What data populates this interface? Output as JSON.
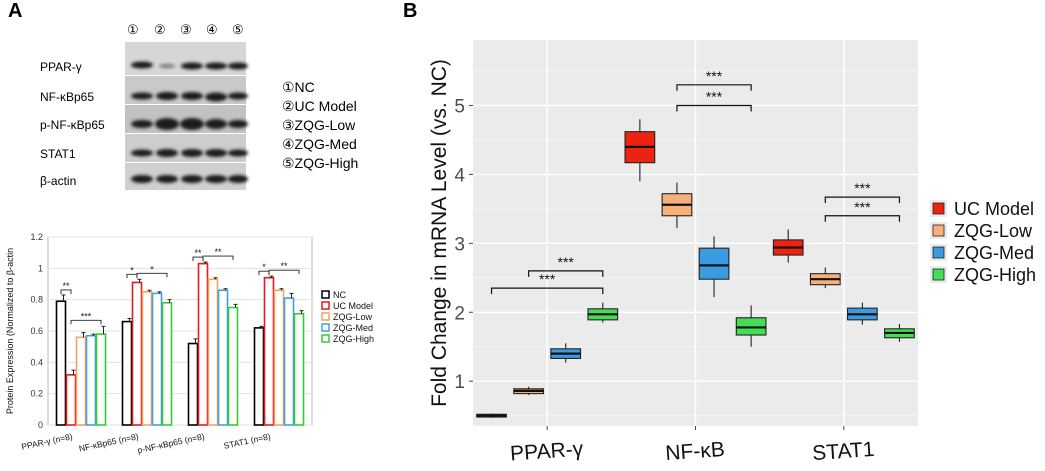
{
  "panel_a": {
    "letter": "A",
    "western_blot": {
      "lane_numbers": [
        "①",
        "②",
        "③",
        "④",
        "⑤"
      ],
      "rows": [
        "PPAR-γ",
        "NF-κBp65",
        "p-NF-κBp65",
        "STAT1",
        "β-actin"
      ],
      "legend": [
        "①NC",
        "②UC Model",
        "③ZQG-Low",
        "④ZQG-Med",
        "⑤ZQG-High"
      ]
    }
  },
  "panel_b": {
    "letter": "B"
  },
  "chart_data": [
    {
      "type": "bar",
      "panel": "A",
      "ylabel": "Protein Expression (Normalized to β-actin",
      "ylim": [
        0,
        1.2
      ],
      "yticks": [
        "0",
        "0.2",
        "0.4",
        "0.6",
        "0.8",
        "1",
        "1.2"
      ],
      "categories": [
        "PPAR-γ (n=8)",
        "NF-κBp65 (n=8)",
        "p-NF-κBp65 (n=8)",
        "STAT1 (n=8)"
      ],
      "series": [
        {
          "name": "NC",
          "color": "#000000",
          "values": [
            0.79,
            0.66,
            0.52,
            0.62
          ],
          "errors": [
            0.04,
            0.02,
            0.03,
            0.01
          ]
        },
        {
          "name": "UC Model",
          "color": "#e41a1c",
          "values": [
            0.32,
            0.91,
            1.03,
            0.94
          ],
          "errors": [
            0.03,
            0.02,
            0.01,
            0.01
          ]
        },
        {
          "name": "ZQG-Low",
          "color": "#f4a460",
          "values": [
            0.56,
            0.85,
            0.93,
            0.86
          ],
          "errors": [
            0.03,
            0.01,
            0.01,
            0.01
          ]
        },
        {
          "name": "ZQG-Med",
          "color": "#3fa0e0",
          "values": [
            0.57,
            0.84,
            0.86,
            0.81
          ],
          "errors": [
            0.01,
            0.01,
            0.01,
            0.03
          ]
        },
        {
          "name": "ZQG-High",
          "color": "#33cc33",
          "values": [
            0.58,
            0.78,
            0.75,
            0.71
          ],
          "errors": [
            0.05,
            0.02,
            0.02,
            0.02
          ]
        }
      ],
      "significance": [
        {
          "category": 0,
          "from": 0,
          "to": 1,
          "label": "**"
        },
        {
          "category": 0,
          "from": 1,
          "to": 4,
          "label": "***"
        },
        {
          "category": 1,
          "from": 0,
          "to": 1,
          "label": "*"
        },
        {
          "category": 1,
          "from": 1,
          "to": 4,
          "label": "*"
        },
        {
          "category": 2,
          "from": 0,
          "to": 1,
          "label": "**"
        },
        {
          "category": 2,
          "from": 1,
          "to": 4,
          "label": "**"
        },
        {
          "category": 3,
          "from": 0,
          "to": 1,
          "label": "*"
        },
        {
          "category": 3,
          "from": 1,
          "to": 4,
          "label": "**"
        }
      ]
    },
    {
      "type": "box",
      "panel": "B",
      "ylabel": "Fold Change in mRNA Level (vs. NC)",
      "ylim": [
        0.35,
        5.95
      ],
      "yticks": [
        1,
        2,
        3,
        4,
        5
      ],
      "categories": [
        "PPAR-γ",
        "NF-κB",
        "STAT1"
      ],
      "series": [
        {
          "name": "UC Model",
          "color": "#ee2211",
          "legend": true,
          "boxes": [
            {
              "cat": 0,
              "min": 0.47,
              "q1": 0.48,
              "median": 0.5,
              "q3": 0.52,
              "max": 0.53
            },
            {
              "cat": 1,
              "min": 3.9,
              "q1": 4.17,
              "median": 4.4,
              "q3": 4.62,
              "max": 4.8
            },
            {
              "cat": 2,
              "min": 2.72,
              "q1": 2.83,
              "median": 2.94,
              "q3": 3.05,
              "max": 3.2
            }
          ]
        },
        {
          "name": "ZQG-Low",
          "color": "#f7b07a",
          "legend": true,
          "boxes": [
            {
              "cat": 0,
              "min": 0.8,
              "q1": 0.82,
              "median": 0.86,
              "q3": 0.89,
              "max": 0.92
            },
            {
              "cat": 1,
              "min": 3.22,
              "q1": 3.4,
              "median": 3.56,
              "q3": 3.72,
              "max": 3.88
            },
            {
              "cat": 2,
              "min": 2.35,
              "q1": 2.4,
              "median": 2.48,
              "q3": 2.56,
              "max": 2.65
            }
          ]
        },
        {
          "name": "ZQG-Med",
          "color": "#3b9be0",
          "legend": true,
          "boxes": [
            {
              "cat": 0,
              "min": 1.27,
              "q1": 1.33,
              "median": 1.4,
              "q3": 1.47,
              "max": 1.55
            },
            {
              "cat": 1,
              "min": 2.22,
              "q1": 2.48,
              "median": 2.68,
              "q3": 2.93,
              "max": 3.1
            },
            {
              "cat": 2,
              "min": 1.82,
              "q1": 1.89,
              "median": 1.97,
              "q3": 2.06,
              "max": 2.14
            }
          ]
        },
        {
          "name": "ZQG-High",
          "color": "#44dd55",
          "legend": true,
          "boxes": [
            {
              "cat": 0,
              "min": 1.85,
              "q1": 1.89,
              "median": 1.97,
              "q3": 2.05,
              "max": 2.14
            },
            {
              "cat": 1,
              "min": 1.5,
              "q1": 1.67,
              "median": 1.78,
              "q3": 1.92,
              "max": 2.1
            },
            {
              "cat": 2,
              "min": 1.57,
              "q1": 1.63,
              "median": 1.7,
              "q3": 1.76,
              "max": 1.83
            }
          ]
        }
      ],
      "significance": [
        {
          "category": 0,
          "from": 0,
          "to": 3,
          "y": 2.35,
          "label": "***"
        },
        {
          "category": 0,
          "from": 1,
          "to": 3,
          "y": 2.6,
          "label": "***"
        },
        {
          "category": 1,
          "from": 1,
          "to": 3,
          "y": 5.0,
          "label": "***"
        },
        {
          "category": 1,
          "from": 1,
          "to": 3,
          "y": 5.3,
          "label": "***"
        },
        {
          "category": 2,
          "from": 1,
          "to": 3,
          "y": 3.4,
          "label": "***"
        },
        {
          "category": 2,
          "from": 1,
          "to": 3,
          "y": 3.67,
          "label": "***"
        }
      ]
    }
  ]
}
